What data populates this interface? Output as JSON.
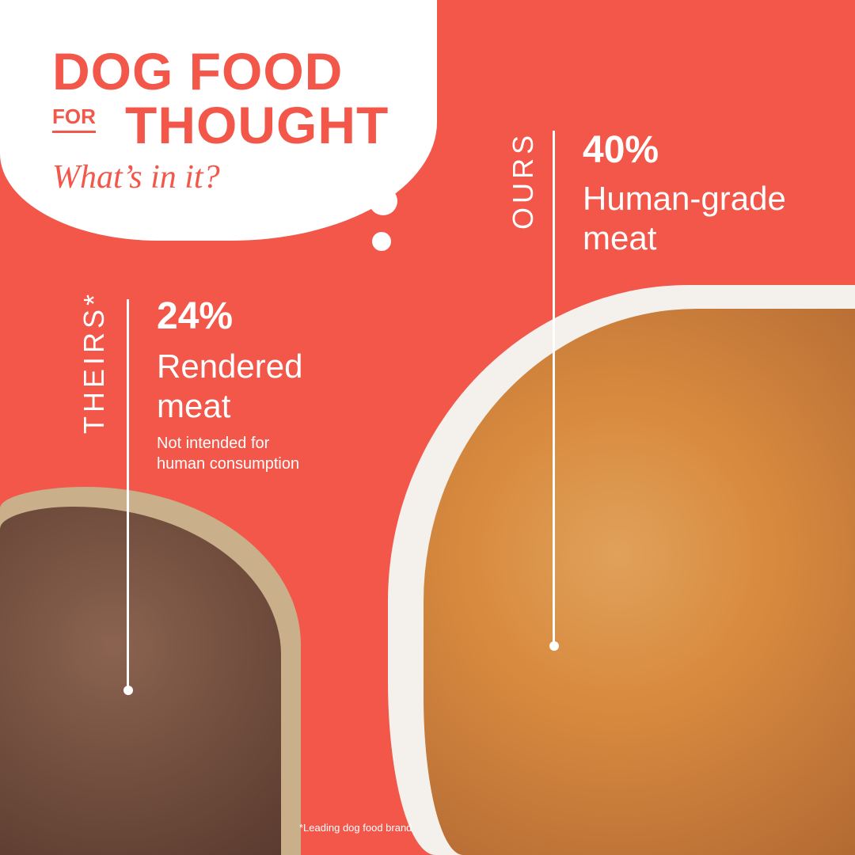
{
  "header": {
    "title_line1": "DOG FOOD",
    "title_for": "FOR",
    "title_line2": "THOUGHT",
    "subtitle": "What’s in it?"
  },
  "ours": {
    "label": "OURS",
    "percent": "40%",
    "desc_line1": "Human-grade",
    "desc_line2": "meat"
  },
  "theirs": {
    "label": "THEIRS*",
    "percent": "24%",
    "desc_line1": "Rendered",
    "desc_line2": "meat",
    "note_line1": "Not intended for",
    "note_line2": "human consumption"
  },
  "footnote": "*Leading dog food brand",
  "colors": {
    "background": "#f2574a",
    "text": "#ffffff",
    "cloud": "#ffffff"
  }
}
